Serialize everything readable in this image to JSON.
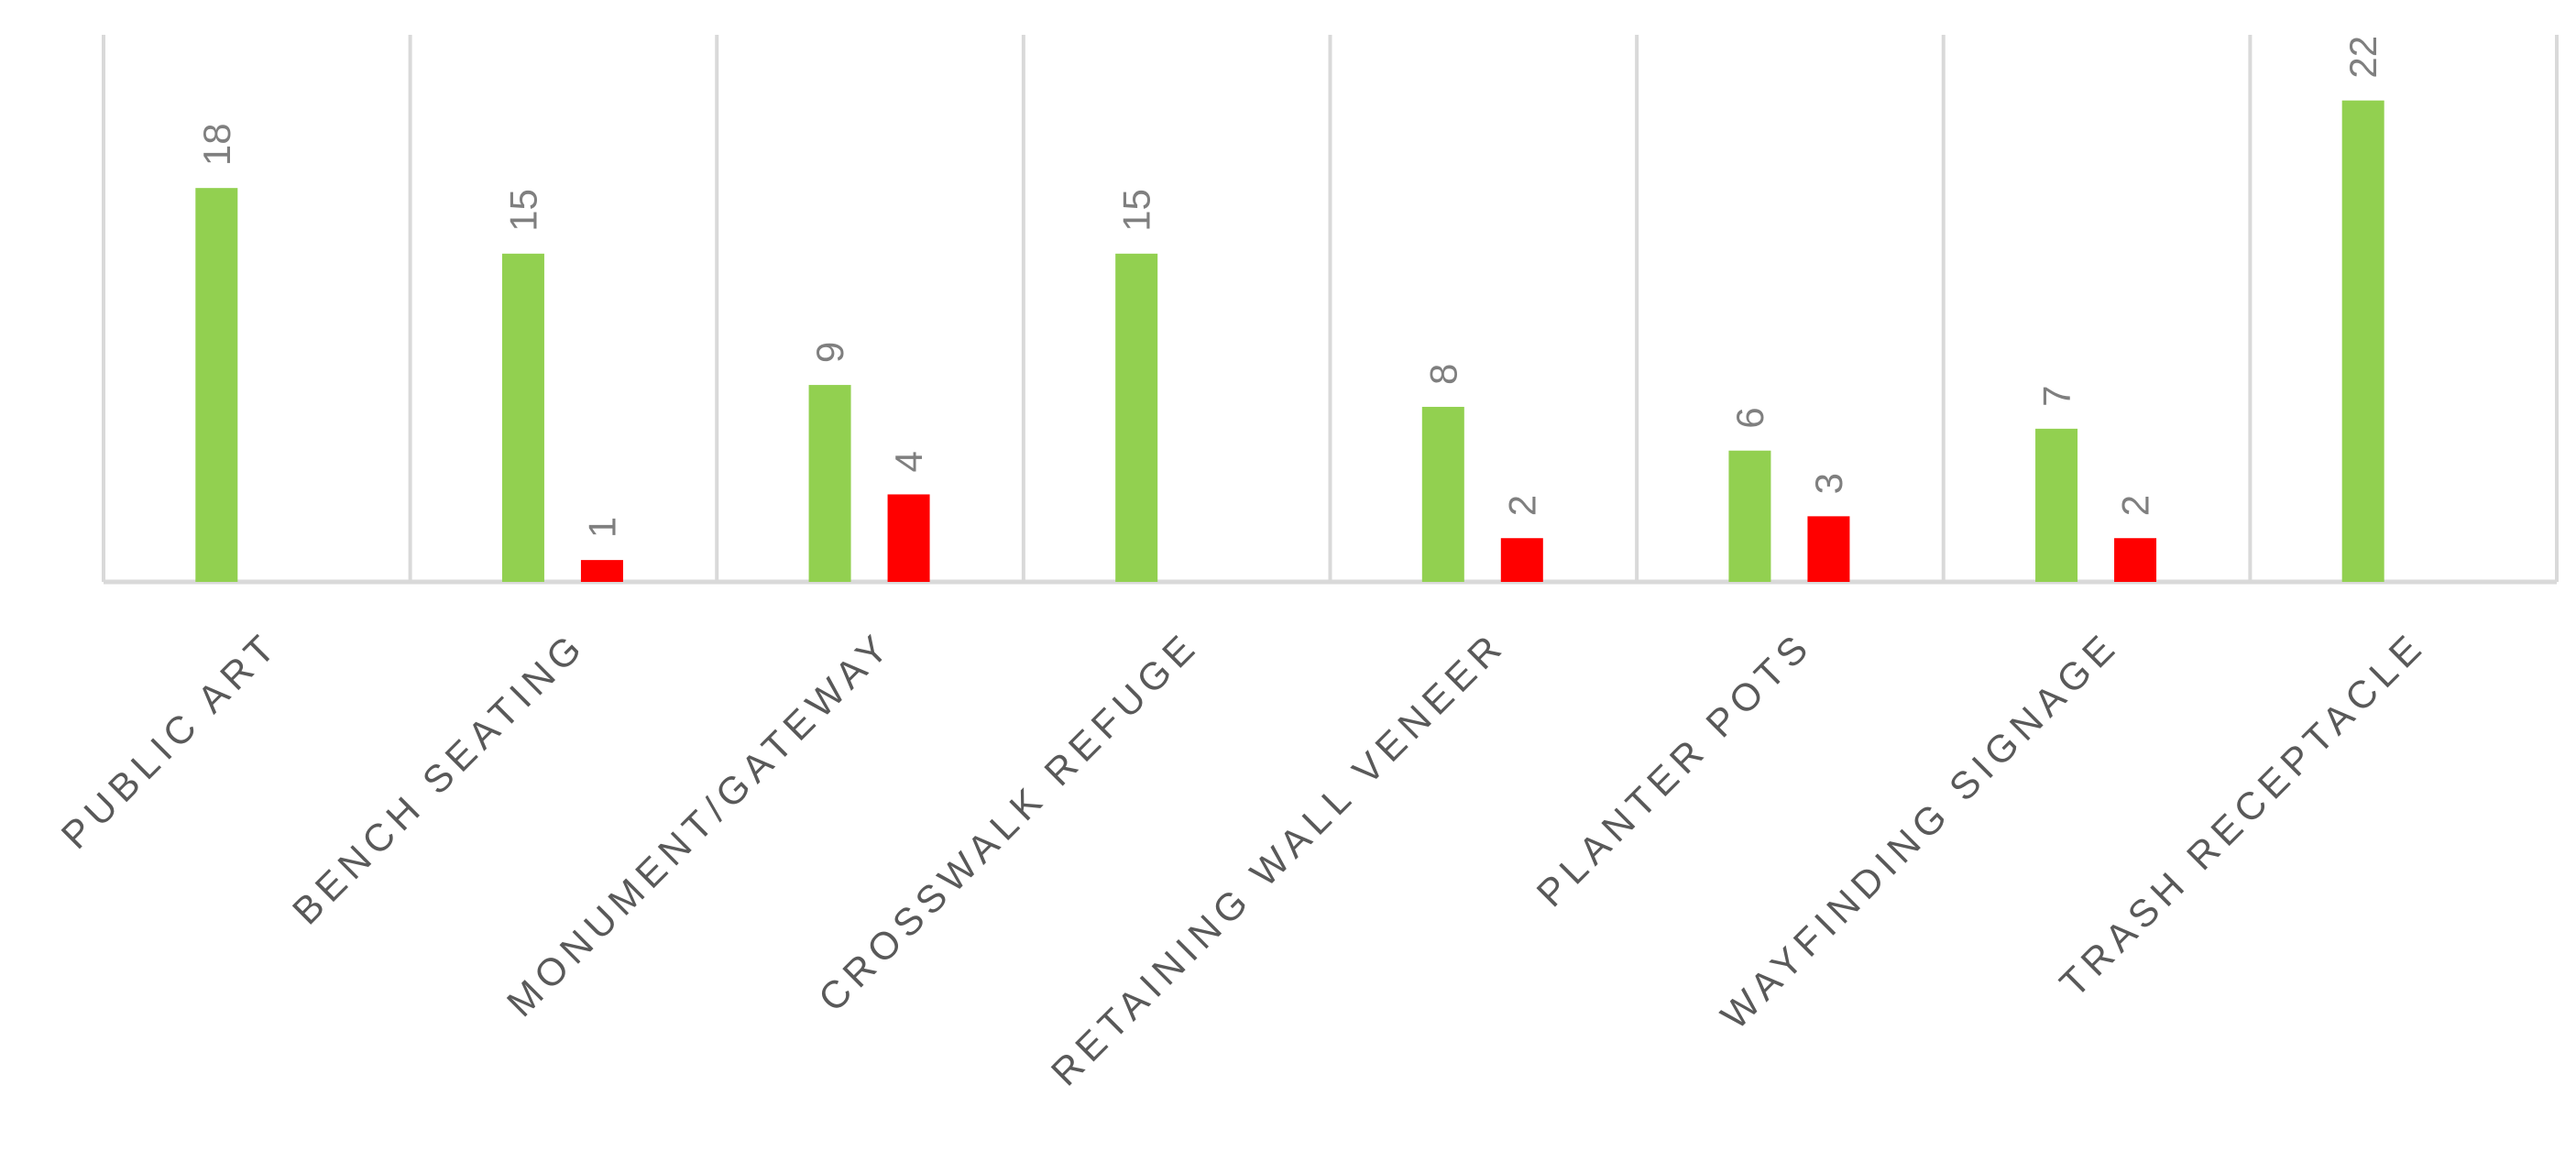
{
  "chart_data": {
    "type": "bar",
    "categories": [
      "PUBLIC ART",
      "BENCH SEATING",
      "MONUMENT/GATEWAY",
      "CROSSWALK REFUGE",
      "RETAINING WALL VENEER",
      "PLANTER POTS",
      "WAYFINDING SIGNAGE",
      "TRASH RECEPTACLE"
    ],
    "series": [
      {
        "color": "#92d050",
        "values": [
          18,
          15,
          9,
          15,
          8,
          6,
          7,
          22
        ]
      },
      {
        "color": "#ff0000",
        "values": [
          null,
          1,
          4,
          null,
          2,
          3,
          2,
          null
        ]
      }
    ],
    "ylim": [
      0,
      25
    ],
    "grid": "vertical category separators",
    "data_labels": true,
    "gridline_color": "#d9d9d9"
  }
}
